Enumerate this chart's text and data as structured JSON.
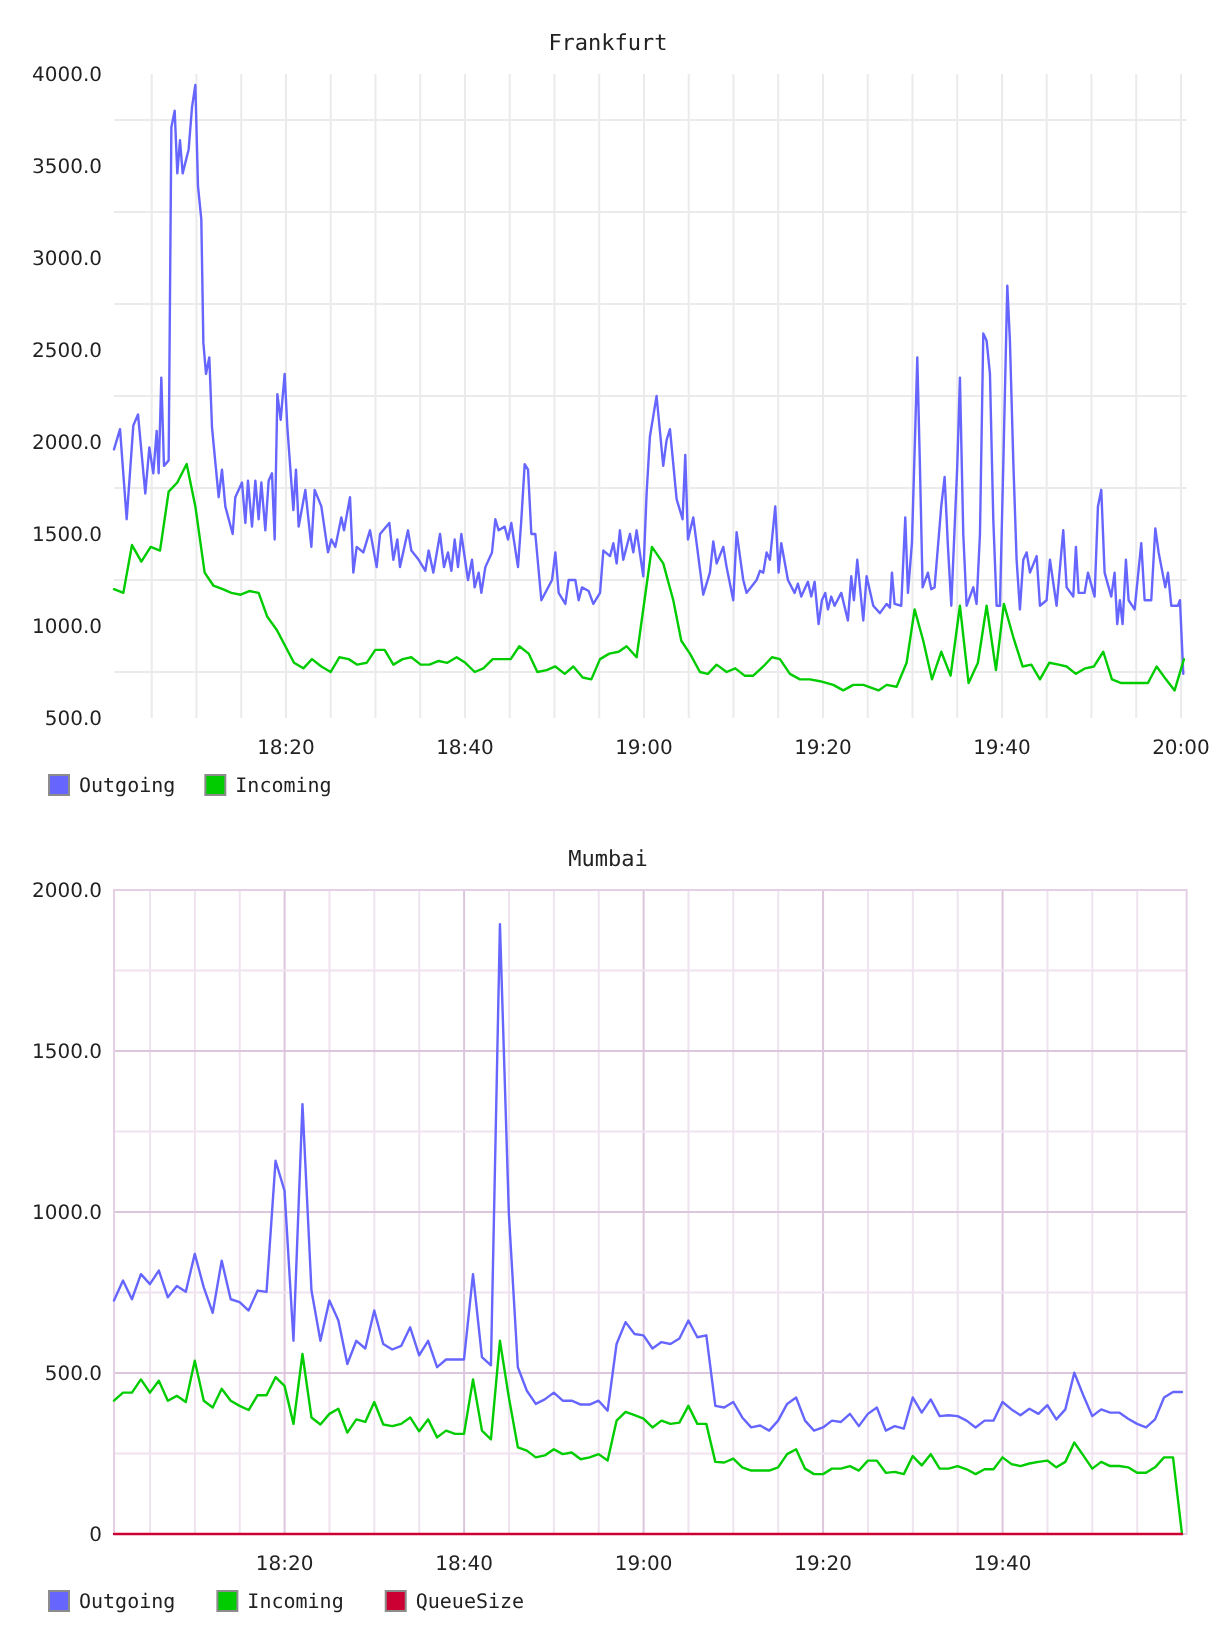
{
  "chart_data": [
    {
      "type": "line",
      "title": "Frankfurt",
      "xlim": [
        18.0131,
        20.0105
      ],
      "xticks": [
        {
          "value": 18.083333,
          "label": null
        },
        {
          "value": 18.166667,
          "label": null
        },
        {
          "value": 18.25,
          "label": null
        },
        {
          "value": 18.333333,
          "label": "18:20"
        },
        {
          "value": 18.416667,
          "label": null
        },
        {
          "value": 18.5,
          "label": null
        },
        {
          "value": 18.583333,
          "label": null
        },
        {
          "value": 18.666667,
          "label": "18:40"
        },
        {
          "value": 18.75,
          "label": null
        },
        {
          "value": 18.833333,
          "label": null
        },
        {
          "value": 18.916667,
          "label": null
        },
        {
          "value": 19,
          "label": "19:00"
        },
        {
          "value": 19.083333,
          "label": null
        },
        {
          "value": 19.166667,
          "label": null
        },
        {
          "value": 19.25,
          "label": null
        },
        {
          "value": 19.333333,
          "label": "19:20"
        },
        {
          "value": 19.416667,
          "label": null
        },
        {
          "value": 19.5,
          "label": null
        },
        {
          "value": 19.583333,
          "label": null
        },
        {
          "value": 19.666667,
          "label": "19:40"
        },
        {
          "value": 19.75,
          "label": null
        },
        {
          "value": 19.833333,
          "label": null
        },
        {
          "value": 19.916667,
          "label": null
        },
        {
          "value": 20,
          "label": "20:00"
        }
      ],
      "ylim": [
        500,
        4000
      ],
      "yticks": [
        {
          "value": 500,
          "label": "500.0"
        },
        {
          "value": 750,
          "label": null
        },
        {
          "value": 1000,
          "label": "1000.0"
        },
        {
          "value": 1250,
          "label": null
        },
        {
          "value": 1500,
          "label": "1500.0"
        },
        {
          "value": 1750,
          "label": null
        },
        {
          "value": 2000,
          "label": "2000.0"
        },
        {
          "value": 2250,
          "label": null
        },
        {
          "value": 2500,
          "label": "2500.0"
        },
        {
          "value": 2750,
          "label": null
        },
        {
          "value": 3000,
          "label": "3000.0"
        },
        {
          "value": 3250,
          "label": null
        },
        {
          "value": 3500,
          "label": "3500.0"
        },
        {
          "value": 3750,
          "label": null
        },
        {
          "value": 4000,
          "label": "4000.0"
        }
      ],
      "grid": true,
      "legend": "bottom left",
      "series": [
        {
          "name": "Outgoing",
          "color": "#6666ff",
          "x": [
            18.0131,
            18.0243,
            18.0367,
            18.0491,
            18.0578,
            18.0714,
            18.0789,
            18.0863,
            18.0926,
            18.0963,
            18.1012,
            18.1062,
            18.1149,
            18.1199,
            18.1261,
            18.131,
            18.136,
            18.141,
            18.1521,
            18.1584,
            18.1646,
            18.1695,
            18.1757,
            18.1795,
            18.1844,
            18.1906,
            18.1956,
            18.208,
            18.2142,
            18.2204,
            18.2341,
            18.239,
            18.2515,
            18.2577,
            18.2626,
            18.2701,
            18.2763,
            18.2825,
            18.2875,
            18.2949,
            18.3011,
            18.3073,
            18.3123,
            18.3173,
            18.3235,
            18.3309,
            18.3359,
            18.3471,
            18.352,
            18.357,
            18.3694,
            18.3806,
            18.3868,
            18.3992,
            18.4116,
            18.4178,
            18.4253,
            18.4364,
            18.4414,
            18.4526,
            18.4588,
            18.465,
            18.4774,
            18.4898,
            18.5022,
            18.5085,
            18.5258,
            18.5333,
            18.5407,
            18.5457,
            18.5606,
            18.5668,
            18.5805,
            18.5929,
            18.5991,
            18.6078,
            18.6202,
            18.6276,
            18.6351,
            18.6413,
            18.6475,
            18.6537,
            18.6599,
            18.6723,
            18.6798,
            18.6847,
            18.6922,
            18.6972,
            18.7046,
            18.717,
            18.7232,
            18.7294,
            18.7406,
            18.7468,
            18.753,
            18.7654,
            18.7717,
            18.7779,
            18.7841,
            18.7903,
            18.7977,
            18.8089,
            18.8288,
            18.835,
            18.8412,
            18.8536,
            18.8598,
            18.8722,
            18.8784,
            18.8846,
            18.897,
            18.9057,
            18.9182,
            18.9244,
            18.9368,
            18.943,
            18.9492,
            18.9552,
            18.9615,
            18.9739,
            18.9801,
            18.9863,
            18.9987,
            19.0049,
            19.0111,
            19.0235,
            19.0359,
            19.0421,
            19.0484,
            19.0608,
            19.0719,
            19.0769,
            19.0819,
            19.0918,
            19.1104,
            19.1228,
            19.1291,
            19.1353,
            19.1477,
            19.1539,
            19.1663,
            19.1725,
            19.1849,
            19.1911,
            19.2098,
            19.216,
            19.2222,
            19.2284,
            19.2346,
            19.2445,
            19.2507,
            19.2557,
            19.2681,
            19.2805,
            19.2867,
            19.2929,
            19.3053,
            19.3116,
            19.3178,
            19.3252,
            19.3314,
            19.3376,
            19.3426,
            19.3488,
            19.355,
            19.3674,
            19.3798,
            19.386,
            19.391,
            19.3972,
            19.4084,
            19.4146,
            19.427,
            19.4394,
            19.4518,
            19.458,
            19.4618,
            19.4667,
            19.4791,
            19.4866,
            19.4916,
            19.499,
            19.5052,
            19.509,
            19.5139,
            19.5189,
            19.5288,
            19.535,
            19.5412,
            19.5536,
            19.5599,
            19.5661,
            19.5723,
            19.5834,
            19.5884,
            19.5946,
            19.6008,
            19.6132,
            19.6194,
            19.6257,
            19.6319,
            19.6381,
            19.6443,
            19.6505,
            19.6567,
            19.6629,
            19.6691,
            19.6766,
            19.6815,
            19.6877,
            19.6939,
            19.7001,
            19.7064,
            19.7126,
            19.7188,
            19.7312,
            19.7374,
            19.7498,
            19.756,
            19.7684,
            19.7808,
            19.7871,
            19.7995,
            19.8044,
            19.8094,
            19.8206,
            19.8268,
            19.8392,
            19.8454,
            19.8516,
            19.8578,
            19.8702,
            19.8764,
            19.8813,
            19.8863,
            19.8913,
            19.8975,
            19.9025,
            19.9137,
            19.9261,
            19.9323,
            19.9447,
            19.9522,
            19.9584,
            19.9708,
            19.9758,
            19.982,
            19.9944,
            19.9981,
            20.0043
          ],
          "values": [
            1960,
            2070,
            1580,
            2090,
            2150,
            1720,
            1970,
            1830,
            2060,
            1830,
            2350,
            1870,
            1900,
            3710,
            3800,
            3460,
            3640,
            3460,
            3590,
            3820,
            3940,
            3390,
            3210,
            2540,
            2370,
            2460,
            2080,
            1700,
            1850,
            1650,
            1500,
            1700,
            1780,
            1560,
            1790,
            1540,
            1790,
            1580,
            1780,
            1520,
            1790,
            1830,
            1470,
            2260,
            2120,
            2370,
            2080,
            1630,
            1850,
            1540,
            1740,
            1430,
            1740,
            1650,
            1400,
            1470,
            1430,
            1590,
            1520,
            1700,
            1290,
            1430,
            1400,
            1520,
            1320,
            1500,
            1560,
            1360,
            1470,
            1320,
            1520,
            1410,
            1360,
            1300,
            1410,
            1290,
            1500,
            1320,
            1400,
            1300,
            1470,
            1320,
            1500,
            1250,
            1360,
            1210,
            1290,
            1180,
            1320,
            1400,
            1580,
            1520,
            1540,
            1470,
            1560,
            1320,
            1580,
            1880,
            1850,
            1500,
            1500,
            1140,
            1250,
            1400,
            1180,
            1120,
            1250,
            1250,
            1140,
            1210,
            1190,
            1120,
            1180,
            1410,
            1380,
            1450,
            1340,
            1520,
            1360,
            1500,
            1400,
            1520,
            1270,
            1720,
            2030,
            2250,
            1870,
            2010,
            2070,
            1690,
            1580,
            1930,
            1470,
            1590,
            1170,
            1290,
            1460,
            1340,
            1430,
            1320,
            1140,
            1510,
            1250,
            1180,
            1250,
            1300,
            1290,
            1400,
            1360,
            1650,
            1290,
            1450,
            1250,
            1180,
            1230,
            1160,
            1240,
            1160,
            1240,
            1010,
            1140,
            1180,
            1090,
            1160,
            1110,
            1180,
            1030,
            1270,
            1140,
            1360,
            1030,
            1270,
            1110,
            1070,
            1120,
            1100,
            1290,
            1120,
            1110,
            1590,
            1180,
            1450,
            2070,
            2460,
            1870,
            1210,
            1290,
            1200,
            1210,
            1650,
            1810,
            1430,
            1110,
            1870,
            2350,
            1500,
            1110,
            1210,
            1120,
            1500,
            2590,
            2550,
            2370,
            1580,
            1110,
            1110,
            1870,
            2850,
            2550,
            1900,
            1360,
            1090,
            1360,
            1400,
            1290,
            1380,
            1110,
            1140,
            1360,
            1110,
            1520,
            1210,
            1160,
            1430,
            1180,
            1180,
            1290,
            1160,
            1650,
            1740,
            1290,
            1160,
            1290,
            1010,
            1140,
            1010,
            1360,
            1140,
            1090,
            1450,
            1140,
            1140,
            1530,
            1400,
            1210,
            1290,
            1110,
            1110,
            1140,
            740
          ]
        },
        {
          "name": "Incoming",
          "color": "#00cc00",
          "x": [
            18.0131,
            18.0305,
            18.0466,
            18.064,
            18.0814,
            18.0988,
            18.1149,
            18.131,
            18.1484,
            18.1646,
            18.1819,
            18.1981,
            18.2155,
            18.2316,
            18.249,
            18.2651,
            18.2825,
            18.2986,
            18.316,
            18.3322,
            18.3483,
            18.3657,
            18.3818,
            18.3992,
            18.4166,
            18.4327,
            18.4501,
            18.4662,
            18.4836,
            18.4997,
            18.5171,
            18.5333,
            18.5507,
            18.5668,
            18.5842,
            18.6003,
            18.6177,
            18.6339,
            18.6512,
            18.6674,
            18.6848,
            18.7009,
            18.7183,
            18.7344,
            18.7518,
            18.7679,
            18.7853,
            18.8015,
            18.8188,
            18.835,
            18.8524,
            18.8685,
            18.8859,
            18.902,
            18.9182,
            18.9355,
            18.9529,
            18.9677,
            18.9863,
            19.0148,
            19.0359,
            19.0546,
            19.0695,
            19.0856,
            19.1042,
            19.1191,
            19.1353,
            19.1539,
            19.17,
            19.1874,
            19.2035,
            19.2222,
            19.2383,
            19.2532,
            19.2718,
            19.2905,
            19.3091,
            19.3277,
            19.3525,
            19.3712,
            19.3898,
            19.4084,
            19.4369,
            19.4518,
            19.4705,
            19.4891,
            19.504,
            19.5201,
            19.5363,
            19.5536,
            19.571,
            19.5884,
            19.6045,
            19.6219,
            19.6381,
            19.6555,
            19.6703,
            19.6877,
            19.7051,
            19.7213,
            19.7374,
            19.7548,
            19.7722,
            19.7871,
            19.8044,
            19.8218,
            19.838,
            19.8553,
            19.8715,
            19.8889,
            19.9212,
            19.9385,
            19.9547,
            19.972,
            19.9882,
            20.0055
          ],
          "values": [
            1200,
            1180,
            1440,
            1350,
            1430,
            1410,
            1730,
            1780,
            1880,
            1650,
            1290,
            1220,
            1200,
            1180,
            1170,
            1190,
            1180,
            1050,
            980,
            890,
            800,
            770,
            820,
            780,
            750,
            830,
            820,
            790,
            800,
            870,
            870,
            790,
            820,
            830,
            790,
            790,
            810,
            800,
            830,
            800,
            750,
            770,
            820,
            820,
            820,
            890,
            850,
            750,
            760,
            780,
            740,
            780,
            720,
            710,
            820,
            850,
            860,
            890,
            830,
            1430,
            1340,
            1140,
            920,
            850,
            750,
            740,
            790,
            750,
            770,
            730,
            730,
            780,
            830,
            820,
            740,
            710,
            710,
            700,
            680,
            650,
            680,
            680,
            650,
            680,
            670,
            800,
            1090,
            920,
            710,
            860,
            730,
            1110,
            690,
            800,
            1110,
            760,
            1120,
            940,
            780,
            790,
            710,
            800,
            790,
            780,
            740,
            770,
            780,
            860,
            710,
            690,
            690,
            690,
            780,
            710,
            650,
            820
          ]
        }
      ]
    },
    {
      "type": "line",
      "title": "Mumbai",
      "xlim": [
        18.0165,
        20.0084
      ],
      "xticks": [
        {
          "value": 18.083333,
          "label": null
        },
        {
          "value": 18.166667,
          "label": null
        },
        {
          "value": 18.25,
          "label": null
        },
        {
          "value": 18.333333,
          "label": "18:20"
        },
        {
          "value": 18.416667,
          "label": null
        },
        {
          "value": 18.5,
          "label": null
        },
        {
          "value": 18.583333,
          "label": null
        },
        {
          "value": 18.666667,
          "label": "18:40"
        },
        {
          "value": 18.75,
          "label": null
        },
        {
          "value": 18.833333,
          "label": null
        },
        {
          "value": 18.916667,
          "label": null
        },
        {
          "value": 19,
          "label": "19:00"
        },
        {
          "value": 19.083333,
          "label": null
        },
        {
          "value": 19.166667,
          "label": null
        },
        {
          "value": 19.25,
          "label": null
        },
        {
          "value": 19.333333,
          "label": "19:20"
        },
        {
          "value": 19.416667,
          "label": null
        },
        {
          "value": 19.5,
          "label": null
        },
        {
          "value": 19.583333,
          "label": null
        },
        {
          "value": 19.666667,
          "label": "19:40"
        },
        {
          "value": 19.75,
          "label": null
        },
        {
          "value": 19.833333,
          "label": null
        },
        {
          "value": 19.916667,
          "label": null
        }
      ],
      "ylim": [
        0,
        2000
      ],
      "yticks": [
        0,
        {
          "value": 250,
          "label": null
        },
        {
          "value": 500,
          "label": "500.0"
        },
        {
          "value": 750,
          "label": null
        },
        {
          "value": 1000,
          "label": "1000.0"
        },
        {
          "value": 1250,
          "label": null
        },
        {
          "value": 1500,
          "label": "1500.0"
        },
        {
          "value": 1750,
          "label": null
        },
        {
          "value": 2000,
          "label": "2000.0"
        }
      ],
      "grid": true,
      "legend": "bottom left",
      "x": [
        18.0165,
        18.0332,
        18.0498,
        18.0665,
        18.0832,
        18.0998,
        18.1165,
        18.1332,
        18.1498,
        18.1665,
        18.1832,
        18.1998,
        18.2165,
        18.2332,
        18.2498,
        18.2665,
        18.2832,
        18.2998,
        18.3165,
        18.3332,
        18.3498,
        18.3665,
        18.3832,
        18.3998,
        18.4165,
        18.4332,
        18.4498,
        18.4665,
        18.4832,
        18.4998,
        18.5165,
        18.5332,
        18.5498,
        18.5665,
        18.5832,
        18.5998,
        18.6165,
        18.6332,
        18.6498,
        18.6665,
        18.6832,
        18.6998,
        18.7165,
        18.7332,
        18.7498,
        18.7665,
        18.7832,
        18.7998,
        18.8165,
        18.8332,
        18.8498,
        18.8665,
        18.8832,
        18.8998,
        18.9165,
        18.9332,
        18.9498,
        18.9665,
        18.9832,
        18.9998,
        19.0165,
        19.0332,
        19.0498,
        19.0665,
        19.0832,
        19.0998,
        19.1165,
        19.1332,
        19.1498,
        19.1665,
        19.1832,
        19.1998,
        19.2165,
        19.2332,
        19.2498,
        19.2665,
        19.2832,
        19.2998,
        19.3165,
        19.3332,
        19.3498,
        19.3665,
        19.3832,
        19.3998,
        19.4165,
        19.4332,
        19.4498,
        19.4665,
        19.4832,
        19.4998,
        19.5165,
        19.5332,
        19.5498,
        19.5665,
        19.5832,
        19.5998,
        19.6165,
        19.6332,
        19.6498,
        19.6665,
        19.6832,
        19.6998,
        19.7165,
        19.7332,
        19.7498,
        19.7665,
        19.7832,
        19.7998,
        19.8165,
        19.8332,
        19.8498,
        19.8665,
        19.8832,
        19.8998,
        19.9165,
        19.9332,
        19.9498,
        19.9665,
        19.9832,
        19.9998
      ],
      "series": [
        {
          "name": "Outgoing",
          "color": "#6666ff",
          "values": [
            725,
            787,
            729,
            807,
            776,
            818,
            735,
            770,
            752,
            870,
            766,
            687,
            849,
            729,
            720,
            694,
            756,
            752,
            1159,
            1066,
            600,
            1335,
            756,
            600,
            725,
            663,
            528,
            600,
            576,
            694,
            590,
            573,
            584,
            642,
            555,
            600,
            518,
            542,
            542,
            542,
            807,
            549,
            524,
            1894,
            994,
            518,
            445,
            404,
            418,
            439,
            414,
            414,
            402,
            402,
            414,
            383,
            590,
            658,
            621,
            617,
            576,
            596,
            590,
            607,
            663,
            611,
            617,
            398,
            393,
            410,
            362,
            331,
            337,
            321,
            352,
            404,
            424,
            352,
            321,
            331,
            352,
            348,
            373,
            335,
            373,
            393,
            321,
            335,
            327,
            424,
            377,
            418,
            366,
            369,
            366,
            352,
            331,
            352,
            352,
            410,
            387,
            369,
            389,
            373,
            400,
            356,
            387,
            501,
            431,
            366,
            387,
            377,
            377,
            358,
            342,
            331,
            356,
            424,
            441,
            441
          ]
        },
        {
          "name": "Incoming",
          "color": "#00cc00",
          "values": [
            414,
            439,
            439,
            480,
            439,
            476,
            414,
            429,
            410,
            538,
            414,
            393,
            451,
            414,
            398,
            385,
            431,
            431,
            487,
            460,
            342,
            559,
            362,
            340,
            373,
            389,
            315,
            356,
            348,
            410,
            340,
            335,
            342,
            362,
            319,
            356,
            300,
            321,
            311,
            311,
            480,
            321,
            294,
            600,
            424,
            269,
            259,
            238,
            244,
            263,
            248,
            253,
            232,
            238,
            248,
            228,
            352,
            379,
            369,
            358,
            331,
            352,
            342,
            346,
            398,
            342,
            342,
            224,
            222,
            234,
            207,
            197,
            197,
            197,
            207,
            248,
            263,
            203,
            186,
            186,
            203,
            203,
            211,
            197,
            228,
            228,
            190,
            193,
            186,
            242,
            213,
            248,
            203,
            203,
            211,
            201,
            186,
            201,
            201,
            238,
            217,
            211,
            219,
            224,
            228,
            207,
            224,
            284,
            244,
            203,
            224,
            211,
            211,
            207,
            190,
            190,
            207,
            238,
            238,
            0
          ]
        },
        {
          "name": "QueueSize",
          "color": "#cc0033",
          "values": [
            0,
            0,
            0,
            0,
            0,
            0,
            0,
            0,
            0,
            0,
            0,
            0,
            0,
            0,
            0,
            0,
            0,
            0,
            0,
            0,
            0,
            0,
            0,
            0,
            0,
            0,
            0,
            0,
            0,
            0,
            0,
            0,
            0,
            0,
            0,
            0,
            0,
            0,
            0,
            0,
            0,
            0,
            0,
            0,
            0,
            0,
            0,
            0,
            0,
            0,
            0,
            0,
            0,
            0,
            0,
            0,
            0,
            0,
            0,
            0,
            0,
            0,
            0,
            0,
            0,
            0,
            0,
            0,
            0,
            0,
            0,
            0,
            0,
            0,
            0,
            0,
            0,
            0,
            0,
            0,
            0,
            0,
            0,
            0,
            0,
            0,
            0,
            0,
            0,
            0,
            0,
            0,
            0,
            0,
            0,
            0,
            0,
            0,
            0,
            0,
            0,
            0,
            0,
            0,
            0,
            0,
            0,
            0,
            0,
            0,
            0,
            0,
            0,
            0,
            0,
            0,
            0,
            0,
            0,
            0
          ]
        }
      ]
    }
  ]
}
